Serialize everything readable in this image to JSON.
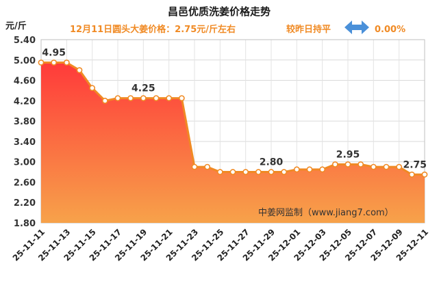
{
  "header": {
    "title": "昌邑优质洗姜价格走势",
    "price_line": "12月11日圆头大姜价格：2.75元/斤左右",
    "compare_label": "较昨日持平",
    "change_value": "0.00%",
    "arrow_icon": "double-arrow-icon",
    "arrow_color": "#4a90d9"
  },
  "watermark": "中姜网监制（www.jiang7.com）",
  "chart_data": {
    "type": "area",
    "ylabel": "元/斤",
    "ylim": [
      1.8,
      5.4
    ],
    "yticks": [
      "5.40",
      "5.00",
      "4.60",
      "4.20",
      "3.80",
      "3.40",
      "3.00",
      "2.60",
      "2.20",
      "1.80"
    ],
    "yticks_values": [
      5.4,
      5.0,
      4.6,
      4.2,
      3.8,
      3.4,
      3.0,
      2.6,
      2.2,
      1.8
    ],
    "x": [
      "25-11-11",
      "25-11-12",
      "25-11-13",
      "25-11-14",
      "25-11-15",
      "25-11-16",
      "25-11-17",
      "25-11-18",
      "25-11-19",
      "25-11-20",
      "25-11-21",
      "25-11-22",
      "25-11-23",
      "25-11-24",
      "25-11-25",
      "25-11-26",
      "25-11-27",
      "25-11-28",
      "25-11-29",
      "25-11-30",
      "25-12-01",
      "25-12-02",
      "25-12-03",
      "25-12-04",
      "25-12-05",
      "25-12-06",
      "25-12-07",
      "25-12-08",
      "25-12-09",
      "25-12-10",
      "25-12-11"
    ],
    "xtick_labels": [
      "25-11-11",
      "25-11-13",
      "25-11-15",
      "25-11-17",
      "25-11-19",
      "25-11-21",
      "25-11-23",
      "25-11-25",
      "25-11-27",
      "25-11-29",
      "25-12-01",
      "25-12-03",
      "25-12-05",
      "25-12-07",
      "25-12-09",
      "25-12-11"
    ],
    "values": [
      4.95,
      4.95,
      4.95,
      4.8,
      4.45,
      4.2,
      4.25,
      4.25,
      4.25,
      4.25,
      4.25,
      4.25,
      2.9,
      2.9,
      2.8,
      2.8,
      2.8,
      2.8,
      2.8,
      2.8,
      2.85,
      2.85,
      2.85,
      2.95,
      2.95,
      2.95,
      2.9,
      2.9,
      2.9,
      2.75,
      2.75
    ],
    "data_labels": [
      {
        "index": 1,
        "text": "4.95"
      },
      {
        "index": 8,
        "text": "4.25"
      },
      {
        "index": 18,
        "text": "2.80"
      },
      {
        "index": 24,
        "text": "2.95"
      },
      {
        "index": 30,
        "text": "2.75"
      }
    ],
    "line_color": "#f08a24",
    "fill_top_color": "#ff3a3a",
    "fill_bottom_color": "#f7a24a",
    "grid": true
  }
}
